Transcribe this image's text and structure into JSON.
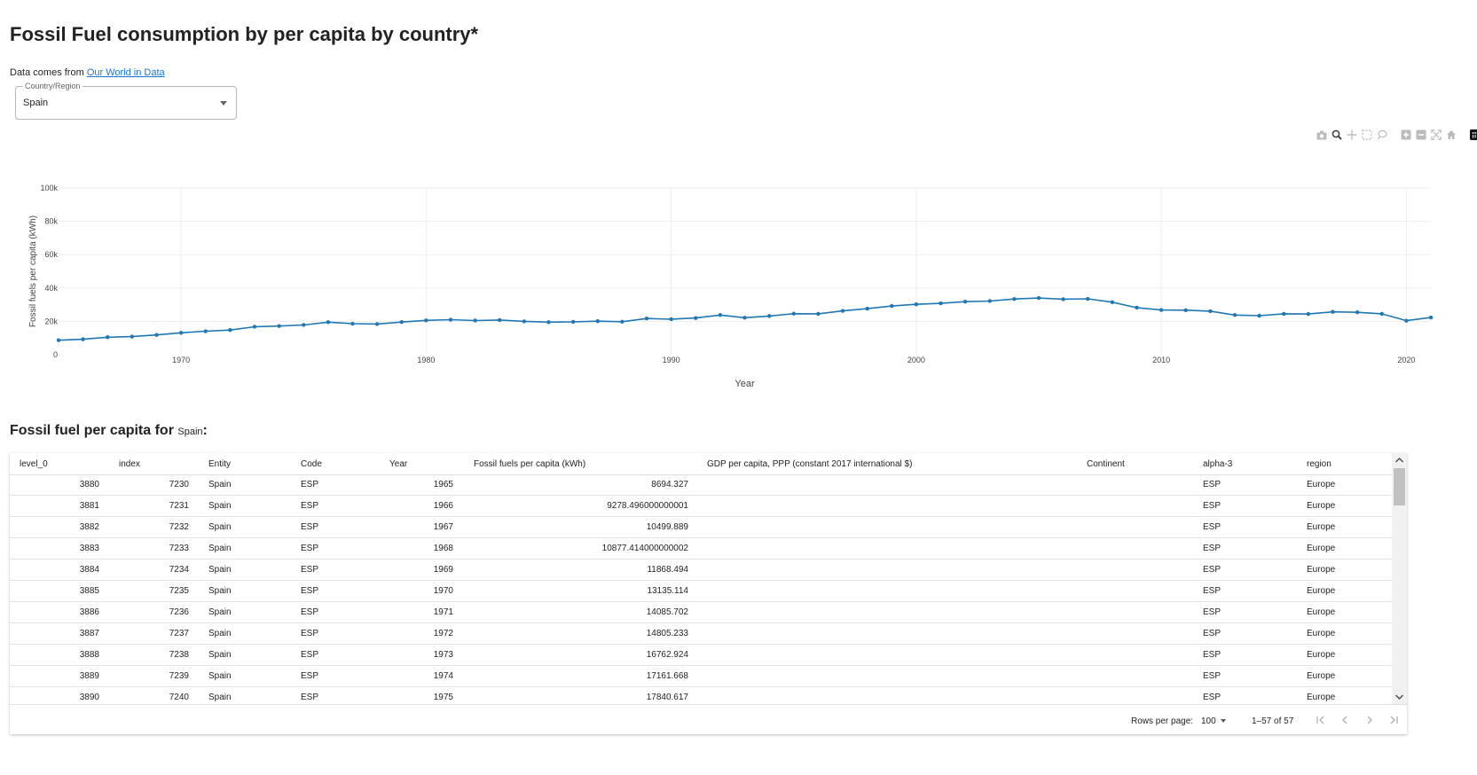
{
  "page": {
    "title": "Fossil Fuel consumption by per capita by country*",
    "source_prefix": "Data comes from ",
    "source_link": "Our World in Data"
  },
  "filter": {
    "label": "Country/Region",
    "value": "Spain"
  },
  "modebar": {
    "icons": [
      "camera-icon",
      "zoom-icon",
      "pan-icon",
      "box-select-icon",
      "lasso-icon",
      "zoom-in-icon",
      "zoom-out-icon",
      "autoscale-icon",
      "reset-axes-icon",
      "plotly-logo-icon"
    ]
  },
  "chart_data": {
    "type": "line",
    "xlabel": "Year",
    "ylabel": "Fossil fuels per capita (kWh)",
    "xlim": [
      1965,
      2021
    ],
    "ylim": [
      0,
      100000
    ],
    "xticks": [
      1970,
      1980,
      1990,
      2000,
      2010,
      2020
    ],
    "yticks": [
      0,
      20000,
      40000,
      60000,
      80000,
      100000
    ],
    "ytick_labels": [
      "0",
      "20k",
      "40k",
      "60k",
      "80k",
      "100k"
    ],
    "grid": true,
    "color": "#1f77b4",
    "x": [
      1965,
      1966,
      1967,
      1968,
      1969,
      1970,
      1971,
      1972,
      1973,
      1974,
      1975,
      1976,
      1977,
      1978,
      1979,
      1980,
      1981,
      1982,
      1983,
      1984,
      1985,
      1986,
      1987,
      1988,
      1989,
      1990,
      1991,
      1992,
      1993,
      1994,
      1995,
      1996,
      1997,
      1998,
      1999,
      2000,
      2001,
      2002,
      2003,
      2004,
      2005,
      2006,
      2007,
      2008,
      2009,
      2010,
      2011,
      2012,
      2013,
      2014,
      2015,
      2016,
      2017,
      2018,
      2019,
      2020,
      2021
    ],
    "y": [
      8694,
      9278,
      10500,
      10877,
      11868,
      13135,
      14086,
      14805,
      16763,
      17162,
      17841,
      19500,
      18600,
      18400,
      19600,
      20600,
      21000,
      20500,
      20800,
      20000,
      19500,
      19700,
      20100,
      19800,
      21700,
      21300,
      22000,
      23800,
      22200,
      23200,
      24600,
      24500,
      26300,
      27600,
      29200,
      30200,
      30800,
      31800,
      32200,
      33400,
      34000,
      33300,
      33500,
      31500,
      28200,
      26800,
      26700,
      26100,
      23800,
      23400,
      24500,
      24400,
      25700,
      25400,
      24500,
      20400,
      22300
    ]
  },
  "table": {
    "title_prefix": "Fossil fuel per capita for ",
    "title_country": "Spain",
    "title_suffix": ":",
    "columns": [
      "level_0",
      "index",
      "Entity",
      "Code",
      "Year",
      "Fossil fuels per capita (kWh)",
      "GDP per capita, PPP (constant 2017 international $)",
      "Continent",
      "alpha-3",
      "region"
    ],
    "rows": [
      [
        "3880",
        "7230",
        "Spain",
        "ESP",
        "1965",
        "8694.327",
        "",
        "",
        "ESP",
        "Europe"
      ],
      [
        "3881",
        "7231",
        "Spain",
        "ESP",
        "1966",
        "9278.496000000001",
        "",
        "",
        "ESP",
        "Europe"
      ],
      [
        "3882",
        "7232",
        "Spain",
        "ESP",
        "1967",
        "10499.889",
        "",
        "",
        "ESP",
        "Europe"
      ],
      [
        "3883",
        "7233",
        "Spain",
        "ESP",
        "1968",
        "10877.414000000002",
        "",
        "",
        "ESP",
        "Europe"
      ],
      [
        "3884",
        "7234",
        "Spain",
        "ESP",
        "1969",
        "11868.494",
        "",
        "",
        "ESP",
        "Europe"
      ],
      [
        "3885",
        "7235",
        "Spain",
        "ESP",
        "1970",
        "13135.114",
        "",
        "",
        "ESP",
        "Europe"
      ],
      [
        "3886",
        "7236",
        "Spain",
        "ESP",
        "1971",
        "14085.702",
        "",
        "",
        "ESP",
        "Europe"
      ],
      [
        "3887",
        "7237",
        "Spain",
        "ESP",
        "1972",
        "14805.233",
        "",
        "",
        "ESP",
        "Europe"
      ],
      [
        "3888",
        "7238",
        "Spain",
        "ESP",
        "1973",
        "16762.924",
        "",
        "",
        "ESP",
        "Europe"
      ],
      [
        "3889",
        "7239",
        "Spain",
        "ESP",
        "1974",
        "17161.668",
        "",
        "",
        "ESP",
        "Europe"
      ],
      [
        "3890",
        "7240",
        "Spain",
        "ESP",
        "1975",
        "17840.617",
        "",
        "",
        "ESP",
        "Europe"
      ]
    ],
    "footer": {
      "rows_per_page_label": "Rows per page:",
      "rows_per_page_value": "100",
      "page_info": "1–57 of 57"
    }
  }
}
